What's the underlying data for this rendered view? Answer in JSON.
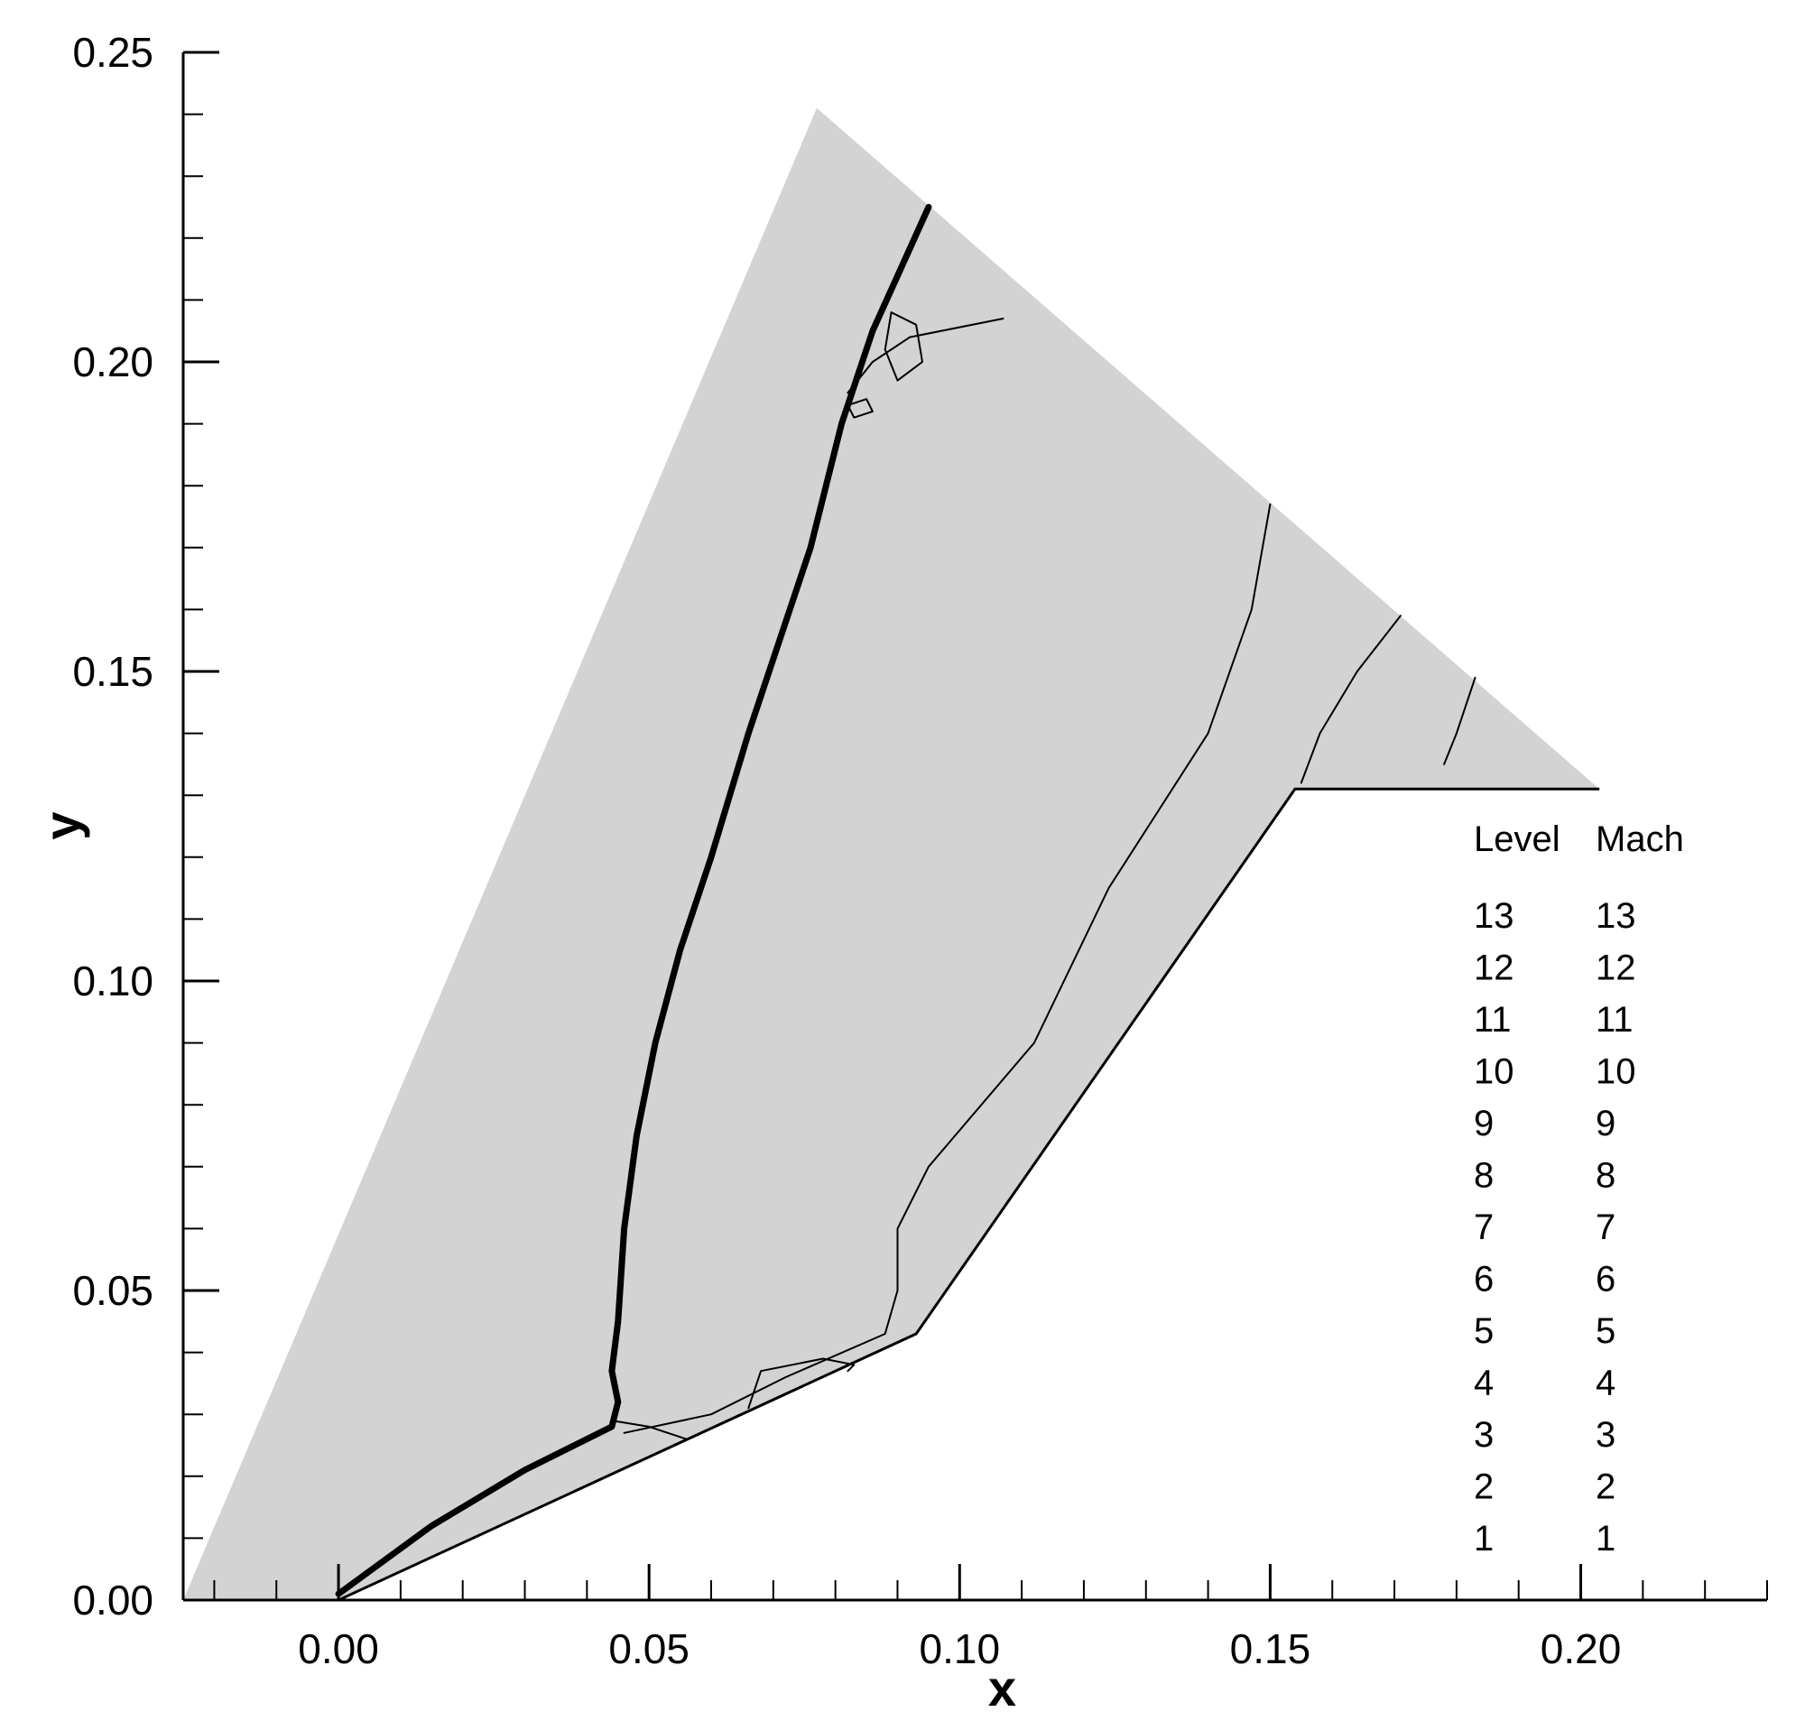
{
  "chart_data": {
    "type": "contour",
    "xlabel": "x",
    "ylabel": "y",
    "xlim": [
      -0.025,
      0.23
    ],
    "ylim": [
      0.0,
      0.25
    ],
    "x_ticks": [
      "0.00",
      "0.05",
      "0.10",
      "0.15",
      "0.20"
    ],
    "x_tick_values": [
      0.0,
      0.05,
      0.1,
      0.15,
      0.2
    ],
    "y_ticks": [
      "0.00",
      "0.05",
      "0.10",
      "0.15",
      "0.20",
      "0.25"
    ],
    "y_tick_values": [
      0.0,
      0.05,
      0.1,
      0.15,
      0.2,
      0.25
    ],
    "x_minor_step": 0.01,
    "y_minor_step": 0.01,
    "grid": false,
    "fill_color": "#d3d3d3",
    "line_color": "#000000",
    "domain_outline": [
      [
        -0.025,
        0.0
      ],
      [
        0.077,
        0.241
      ],
      [
        0.203,
        0.131
      ],
      [
        0.154,
        0.131
      ],
      [
        0.093,
        0.043
      ],
      [
        0.0,
        0.0
      ]
    ],
    "contours": [
      {
        "name": "main-shock",
        "weight": 7,
        "points": [
          [
            0.0,
            0.001
          ],
          [
            0.015,
            0.012
          ],
          [
            0.03,
            0.021
          ],
          [
            0.044,
            0.028
          ],
          [
            0.045,
            0.032
          ],
          [
            0.044,
            0.037
          ],
          [
            0.045,
            0.045
          ],
          [
            0.046,
            0.06
          ],
          [
            0.048,
            0.075
          ],
          [
            0.051,
            0.09
          ],
          [
            0.055,
            0.105
          ],
          [
            0.06,
            0.12
          ],
          [
            0.066,
            0.14
          ],
          [
            0.071,
            0.155
          ],
          [
            0.076,
            0.17
          ],
          [
            0.081,
            0.19
          ],
          [
            0.086,
            0.205
          ],
          [
            0.095,
            0.225
          ]
        ]
      },
      {
        "name": "reflected-line",
        "weight": 2,
        "points": [
          [
            0.044,
            0.029
          ],
          [
            0.05,
            0.028
          ],
          [
            0.056,
            0.026
          ]
        ]
      },
      {
        "name": "sonic-line-1",
        "weight": 2,
        "points": [
          [
            0.046,
            0.027
          ],
          [
            0.06,
            0.03
          ],
          [
            0.072,
            0.036
          ],
          [
            0.088,
            0.043
          ],
          [
            0.09,
            0.05
          ],
          [
            0.09,
            0.06
          ],
          [
            0.095,
            0.07
          ],
          [
            0.112,
            0.09
          ],
          [
            0.124,
            0.115
          ],
          [
            0.14,
            0.14
          ],
          [
            0.147,
            0.16
          ],
          [
            0.15,
            0.177
          ]
        ]
      },
      {
        "name": "sonic-line-2",
        "weight": 2,
        "points": [
          [
            0.155,
            0.132
          ],
          [
            0.158,
            0.14
          ],
          [
            0.164,
            0.15
          ],
          [
            0.171,
            0.159
          ]
        ]
      },
      {
        "name": "sonic-line-3",
        "weight": 2,
        "points": [
          [
            0.178,
            0.135
          ],
          [
            0.18,
            0.14
          ],
          [
            0.183,
            0.149
          ]
        ]
      },
      {
        "name": "bubble-1",
        "weight": 2,
        "points": [
          [
            0.066,
            0.031
          ],
          [
            0.068,
            0.037
          ],
          [
            0.078,
            0.039
          ],
          [
            0.083,
            0.038
          ],
          [
            0.082,
            0.037
          ]
        ]
      },
      {
        "name": "contour-upper",
        "weight": 2,
        "points": [
          [
            0.082,
            0.195
          ],
          [
            0.086,
            0.2
          ],
          [
            0.092,
            0.204
          ],
          [
            0.107,
            0.207
          ]
        ]
      },
      {
        "name": "island-1",
        "weight": 2,
        "points": [
          [
            0.089,
            0.208
          ],
          [
            0.093,
            0.206
          ],
          [
            0.094,
            0.2
          ],
          [
            0.09,
            0.197
          ],
          [
            0.088,
            0.202
          ],
          [
            0.089,
            0.208
          ]
        ]
      },
      {
        "name": "island-2",
        "weight": 2,
        "points": [
          [
            0.082,
            0.193
          ],
          [
            0.085,
            0.194
          ],
          [
            0.086,
            0.192
          ],
          [
            0.083,
            0.191
          ],
          [
            0.082,
            0.193
          ]
        ]
      }
    ],
    "legend": {
      "placement": "right",
      "headers": [
        "Level",
        "Mach"
      ],
      "levels": [
        "13",
        "12",
        "11",
        "10",
        "9",
        "8",
        "7",
        "6",
        "5",
        "4",
        "3",
        "2",
        "1"
      ],
      "mach": [
        "13",
        "12",
        "11",
        "10",
        "9",
        "8",
        "7",
        "6",
        "5",
        "4",
        "3",
        "2",
        "1"
      ]
    }
  }
}
